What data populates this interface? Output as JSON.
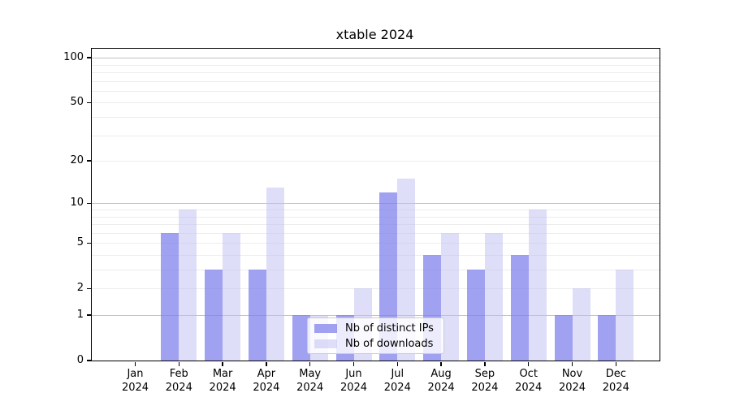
{
  "chart_data": {
    "type": "bar",
    "title": "xtable 2024",
    "xlabel": "",
    "ylabel": "",
    "categories": [
      "Jan",
      "Feb",
      "Mar",
      "Apr",
      "May",
      "Jun",
      "Jul",
      "Aug",
      "Sep",
      "Oct",
      "Nov",
      "Dec"
    ],
    "x_tick_year": "2024",
    "series": [
      {
        "name": "Nb of distinct IPs",
        "color": "#a1a1f0",
        "fill": "rgba(125,125,235,0.72)",
        "values": [
          0,
          6,
          3,
          3,
          1,
          1,
          12,
          4,
          3,
          4,
          1,
          1
        ]
      },
      {
        "name": "Nb of downloads",
        "color": "#dedef8",
        "fill": "rgba(190,190,242,0.5)",
        "values": [
          0,
          9,
          6,
          13,
          1,
          2,
          15,
          6,
          6,
          9,
          2,
          3
        ]
      }
    ],
    "y_axis": {
      "scale": "log10(1+v)",
      "tick_values": [
        0,
        1,
        2,
        5,
        10,
        20,
        50,
        100
      ],
      "major_gridlines": [
        1,
        10,
        100
      ],
      "minor_gridlines": [
        2,
        3,
        4,
        5,
        6,
        7,
        8,
        9,
        20,
        30,
        40,
        50,
        60,
        70,
        80,
        90
      ],
      "top_value": 102
    },
    "legend": {
      "position": "lower-center",
      "entries": [
        "Nb of distinct IPs",
        "Nb of downloads"
      ]
    },
    "style_colors": {
      "grid_major": "#c2c2c2",
      "grid_minor": "#ededed",
      "spine": "#000000",
      "legend_border": "#cccccc",
      "background": "#ffffff"
    }
  }
}
